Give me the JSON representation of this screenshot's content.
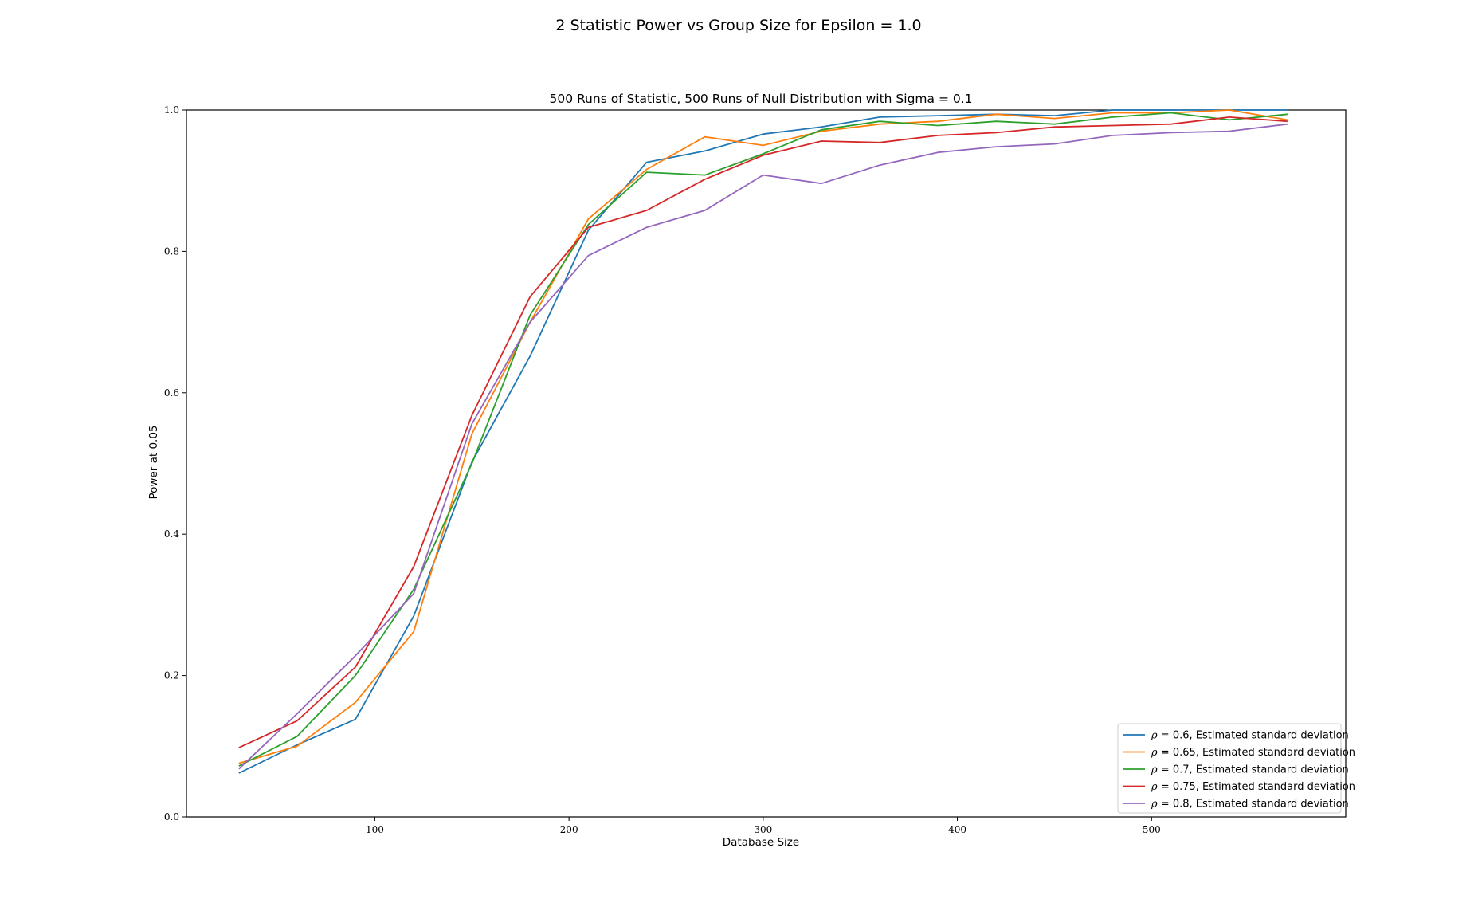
{
  "chart_data": {
    "type": "line",
    "title": "2 Statistic Power vs Group Size for Epsilon = 1.0",
    "subtitle": "500 Runs of Statistic, 500 Runs of Null Distribution with Sigma = 0.1",
    "xlabel": "Database Size",
    "ylabel": "Power at 0.05",
    "xlim": [
      3,
      600
    ],
    "ylim": [
      0.0,
      1.0
    ],
    "xticks": [
      100,
      200,
      300,
      400,
      500
    ],
    "xtick_labels": [
      "100",
      "200",
      "300",
      "400",
      "500"
    ],
    "yticks": [
      0.0,
      0.2,
      0.4,
      0.6,
      0.8,
      1.0
    ],
    "ytick_labels": [
      "0.0",
      "0.2",
      "0.4",
      "0.6",
      "0.8",
      "1.0"
    ],
    "grid": false,
    "legend_position": "lower-right",
    "x": [
      30,
      60,
      90,
      120,
      150,
      180,
      210,
      240,
      270,
      300,
      330,
      360,
      390,
      420,
      450,
      480,
      510,
      540,
      570
    ],
    "series": [
      {
        "name": "ρ = 0.6, Estimated standard deviation",
        "rho": "ρ",
        "label_rest": " = 0.6, Estimated standard deviation",
        "color": "#1f77b4",
        "values": [
          0.062,
          0.102,
          0.138,
          0.284,
          0.502,
          0.652,
          0.83,
          0.926,
          0.942,
          0.966,
          0.976,
          0.99,
          0.992,
          0.994,
          0.992,
          1.0,
          1.0,
          1.0,
          1.0
        ]
      },
      {
        "name": "ρ = 0.65, Estimated standard deviation",
        "rho": "ρ",
        "label_rest": " = 0.65, Estimated standard deviation",
        "color": "#ff7f0e",
        "values": [
          0.076,
          0.1,
          0.162,
          0.262,
          0.542,
          0.7,
          0.846,
          0.916,
          0.962,
          0.95,
          0.97,
          0.98,
          0.984,
          0.994,
          0.988,
          0.996,
          0.996,
          1.0,
          0.986
        ]
      },
      {
        "name": "ρ = 0.7, Estimated standard deviation",
        "rho": "ρ",
        "label_rest": " = 0.7, Estimated standard deviation",
        "color": "#2ca02c",
        "values": [
          0.072,
          0.114,
          0.2,
          0.322,
          0.5,
          0.71,
          0.838,
          0.912,
          0.908,
          0.938,
          0.972,
          0.984,
          0.978,
          0.984,
          0.98,
          0.99,
          0.996,
          0.986,
          0.994
        ]
      },
      {
        "name": "ρ = 0.75, Estimated standard deviation",
        "rho": "ρ",
        "label_rest": " = 0.75, Estimated standard deviation",
        "color": "#d62728",
        "values": [
          0.098,
          0.136,
          0.212,
          0.354,
          0.568,
          0.736,
          0.834,
          0.858,
          0.902,
          0.936,
          0.956,
          0.954,
          0.964,
          0.968,
          0.976,
          0.978,
          0.98,
          0.99,
          0.984
        ]
      },
      {
        "name": "ρ = 0.8, Estimated standard deviation",
        "rho": "ρ",
        "label_rest": " = 0.8, Estimated standard deviation",
        "color": "#9467bd",
        "values": [
          0.068,
          0.146,
          0.228,
          0.316,
          0.556,
          0.7,
          0.794,
          0.834,
          0.858,
          0.908,
          0.896,
          0.922,
          0.94,
          0.948,
          0.952,
          0.964,
          0.968,
          0.97,
          0.98
        ]
      }
    ]
  }
}
